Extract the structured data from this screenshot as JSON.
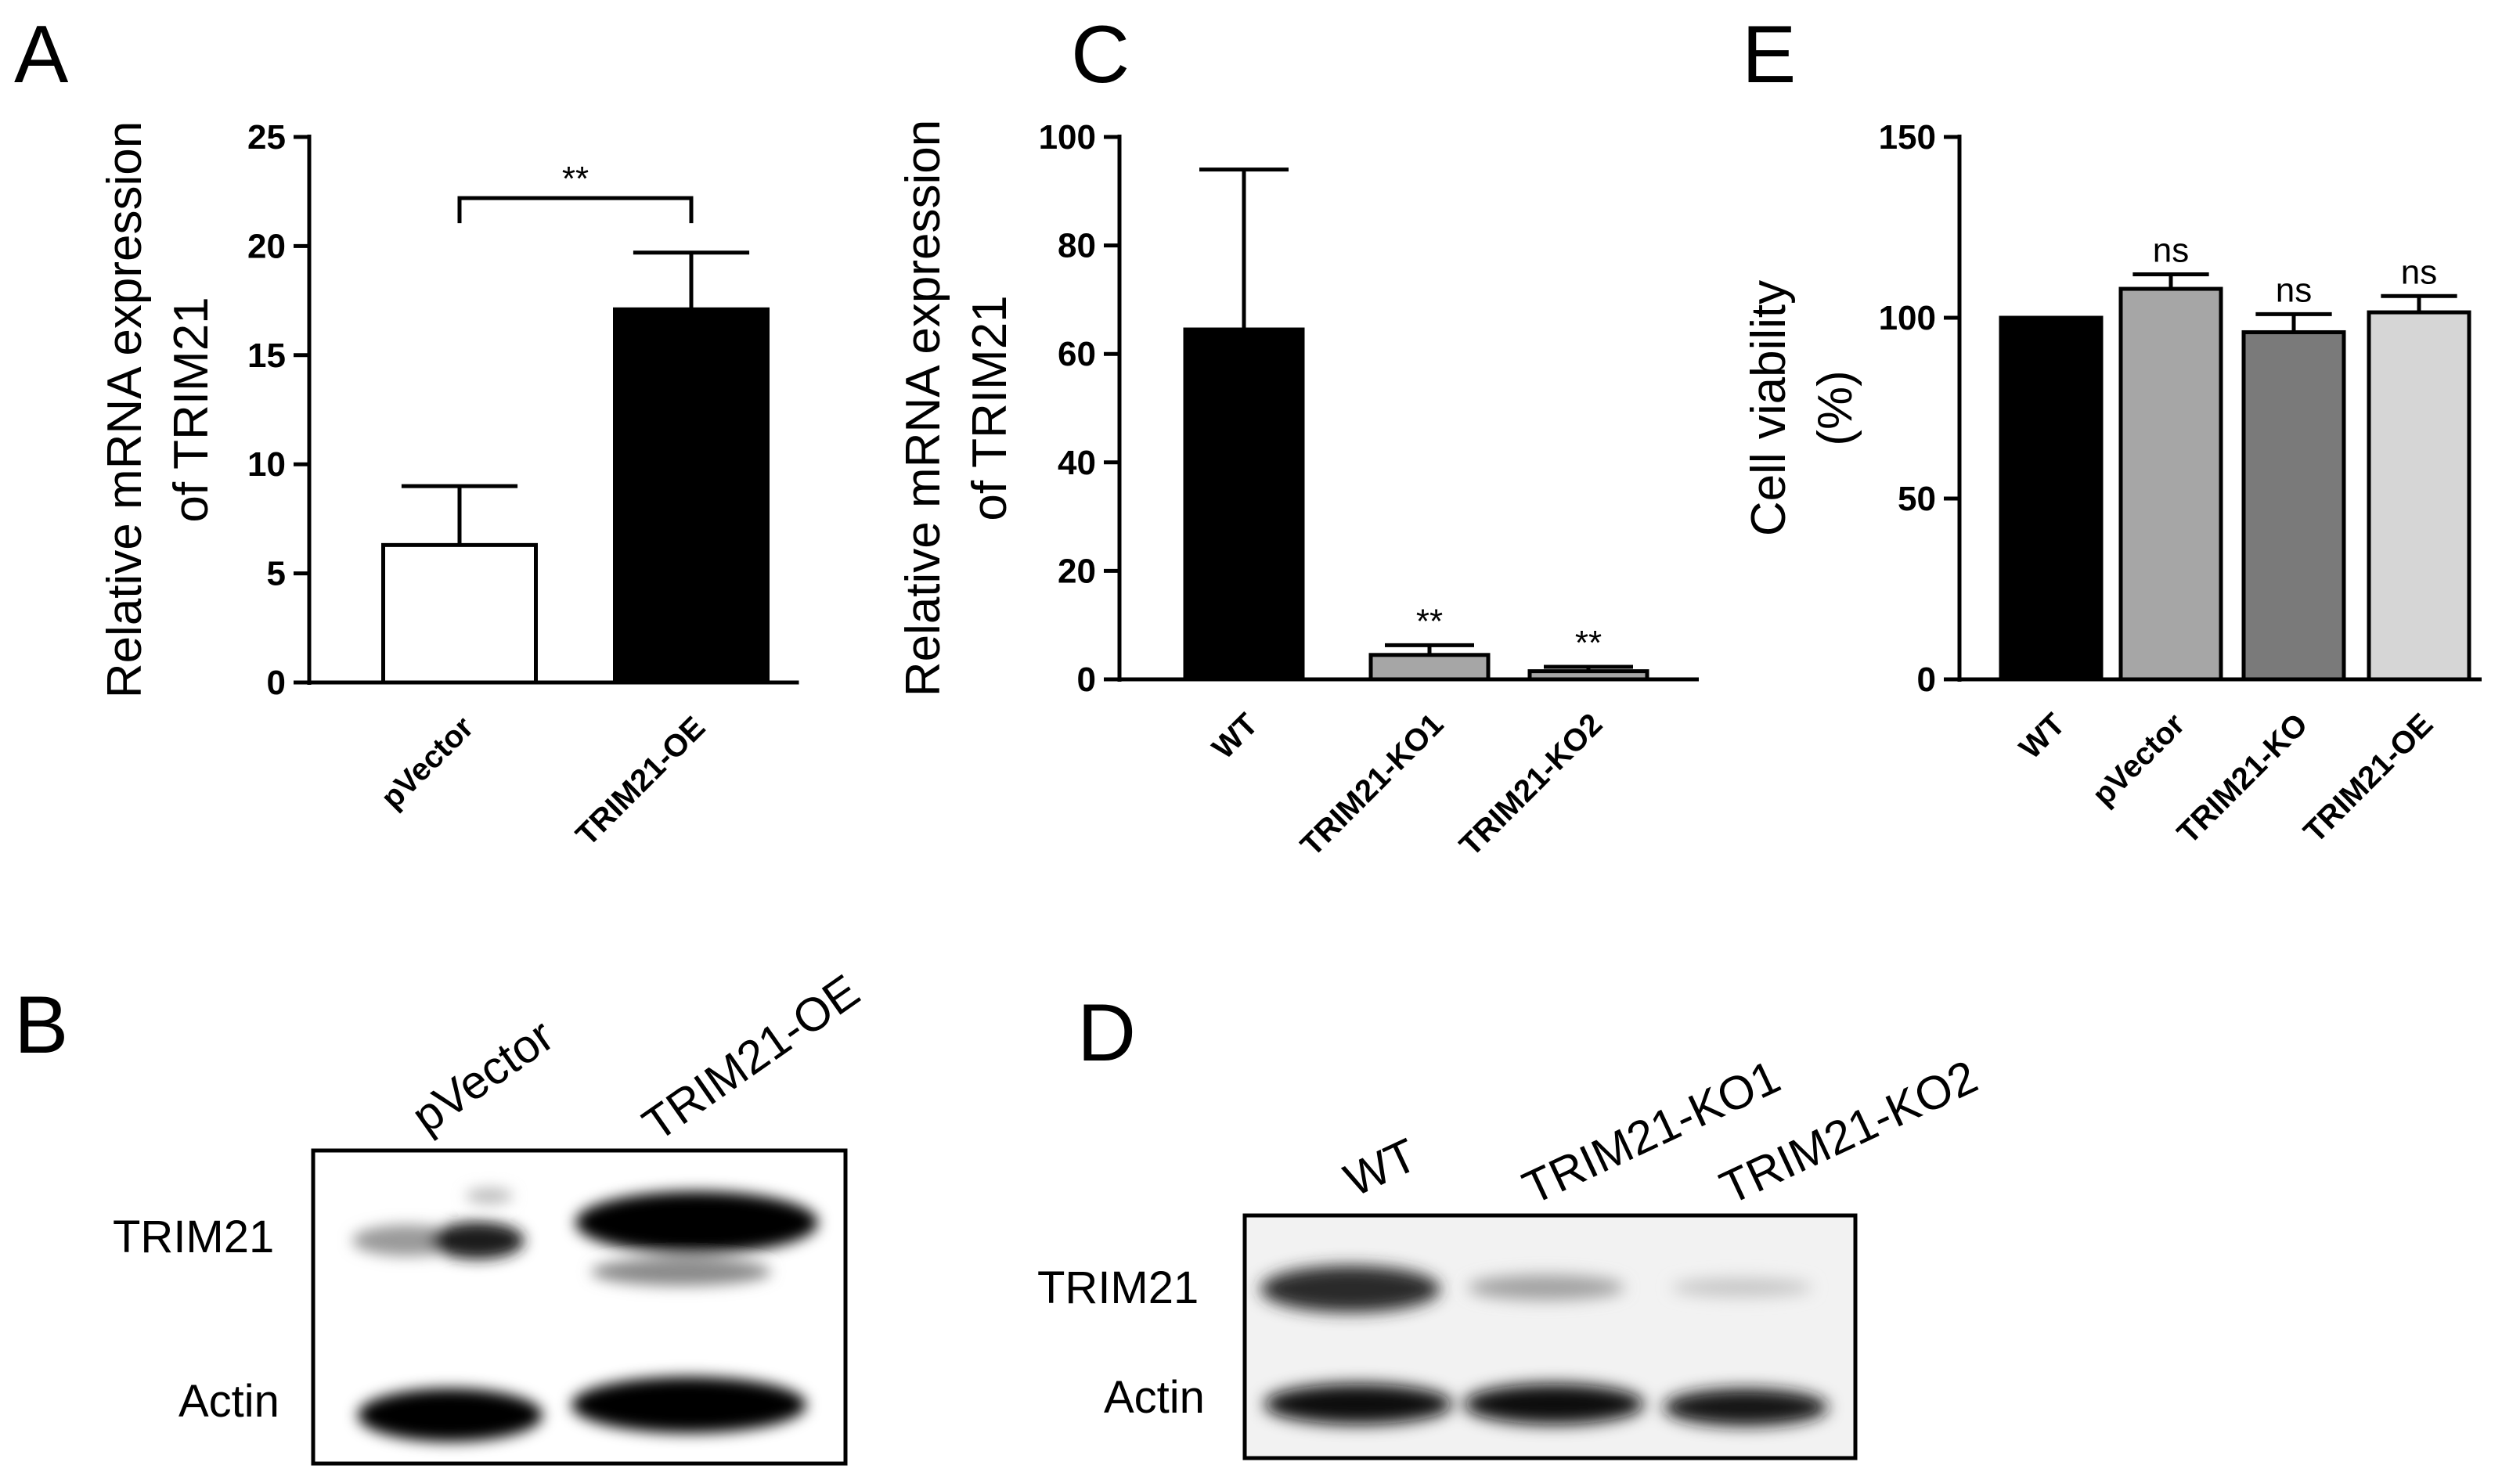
{
  "panels": {
    "A": "A",
    "B": "B",
    "C": "C",
    "D": "D",
    "E": "E"
  },
  "chart_data": [
    {
      "panel": "A",
      "type": "bar",
      "categories": [
        "pVector",
        "TRIM21-OE"
      ],
      "values": [
        6.3,
        17.1
      ],
      "errors": [
        2.7,
        2.6
      ],
      "colors": [
        "#ffffff",
        "#000000"
      ],
      "ylabel_line1": "Relative mRNA expression",
      "ylabel_line2": "of TRIM21",
      "ylim": [
        0,
        25
      ],
      "yticks": [
        0,
        5,
        10,
        15,
        20,
        25
      ],
      "significance": [
        {
          "from": 0,
          "to": 1,
          "label": "**"
        }
      ]
    },
    {
      "panel": "C",
      "type": "bar",
      "categories": [
        "WT",
        "TRIM21-KO1",
        "TRIM21-KO2"
      ],
      "values": [
        64.5,
        4.5,
        1.5
      ],
      "errors": [
        29.5,
        1.8,
        0.8
      ],
      "colors": [
        "#000000",
        "#a6a6a6",
        "#a6a6a6"
      ],
      "ylabel_line1": "Relative mRNA expression",
      "ylabel_line2": "of TRIM21",
      "ylim": [
        0,
        100
      ],
      "yticks": [
        0,
        20,
        40,
        60,
        80,
        100
      ],
      "bar_labels": [
        "",
        "**",
        "**"
      ]
    },
    {
      "panel": "E",
      "type": "bar",
      "categories": [
        "WT",
        "pVector",
        "TRIM21-KO",
        "TRIM21-OE"
      ],
      "values": [
        100,
        108,
        96,
        101.5
      ],
      "errors": [
        0,
        4,
        5,
        4.5
      ],
      "colors": [
        "#000000",
        "#a6a6a6",
        "#7a7a7a",
        "#d6d6d6"
      ],
      "ylabel_line1": "Cell viability",
      "ylabel_line2": "(%)",
      "ylim": [
        0,
        150
      ],
      "yticks": [
        0,
        50,
        100,
        150
      ],
      "bar_labels": [
        "",
        "ns",
        "ns",
        "ns"
      ]
    }
  ],
  "blot_B": {
    "lanes": [
      "pVector",
      "TRIM21-OE"
    ],
    "rows": [
      "TRIM21",
      "Actin"
    ]
  },
  "blot_D": {
    "lanes": [
      "WT",
      "TRIM21-KO1",
      "TRIM21-KO2"
    ],
    "rows": [
      "TRIM21",
      "Actin"
    ]
  }
}
